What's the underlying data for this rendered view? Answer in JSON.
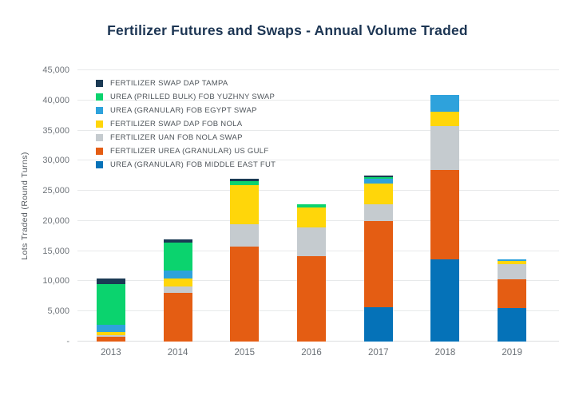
{
  "chart_data": {
    "type": "bar",
    "stacked": true,
    "title": "Fertilizer Futures and Swaps - Annual Volume Traded",
    "ylabel": "Lots Traded (Round Turns)",
    "ylim": [
      0,
      45000
    ],
    "ytick_step": 5000,
    "ytick_labels": [
      "-",
      "5,000",
      "10,000",
      "15,000",
      "20,000",
      "25,000",
      "30,000",
      "35,000",
      "40,000",
      "45,000"
    ],
    "grid": "horizontal",
    "legend_position": "inside-top-left",
    "legend_order": "reverse-of-stack",
    "categories": [
      "2013",
      "2014",
      "2015",
      "2016",
      "2017",
      "2018",
      "2019"
    ],
    "series": [
      {
        "name": "UREA (GRANULAR) FOB MIDDLE EAST FUT",
        "color": "#0572B8",
        "values": [
          0,
          0,
          0,
          0,
          5700,
          13600,
          5600
        ]
      },
      {
        "name": "FERTILIZER UREA (GRANULAR) US GULF",
        "color": "#E45D13",
        "values": [
          800,
          8100,
          15800,
          14200,
          14300,
          14800,
          4700
        ]
      },
      {
        "name": "FERTILIZER UAN FOB NOLA SWAP",
        "color": "#C5CBCF",
        "values": [
          300,
          1100,
          3650,
          4700,
          2800,
          7300,
          2500
        ]
      },
      {
        "name": "FERTILIZER SWAP DAP FOB NOLA",
        "color": "#FFD60A",
        "values": [
          450,
          1300,
          6550,
          3400,
          3350,
          2400,
          600
        ]
      },
      {
        "name": "UREA (GRANULAR) FOB EGYPT SWAP",
        "color": "#2EA2DC",
        "values": [
          1250,
          1300,
          0,
          0,
          900,
          2800,
          250
        ]
      },
      {
        "name": "UREA (PRILLED BULK) FOB YUZHNY SWAP",
        "color": "#0BD36E",
        "values": [
          6800,
          4600,
          600,
          450,
          250,
          0,
          0
        ]
      },
      {
        "name": "FERTILIZER SWAP DAP TAMPA",
        "color": "#1A3A54",
        "values": [
          800,
          500,
          350,
          0,
          300,
          0,
          0
        ]
      }
    ],
    "style": {
      "background": "#FFFFFF",
      "title_color": "#1C3553",
      "axis_text_color": "#6A7076",
      "tick_text_color": "#70757B",
      "legend_text_color": "#4E545A",
      "gridline_color": "#E7E9EA"
    }
  }
}
